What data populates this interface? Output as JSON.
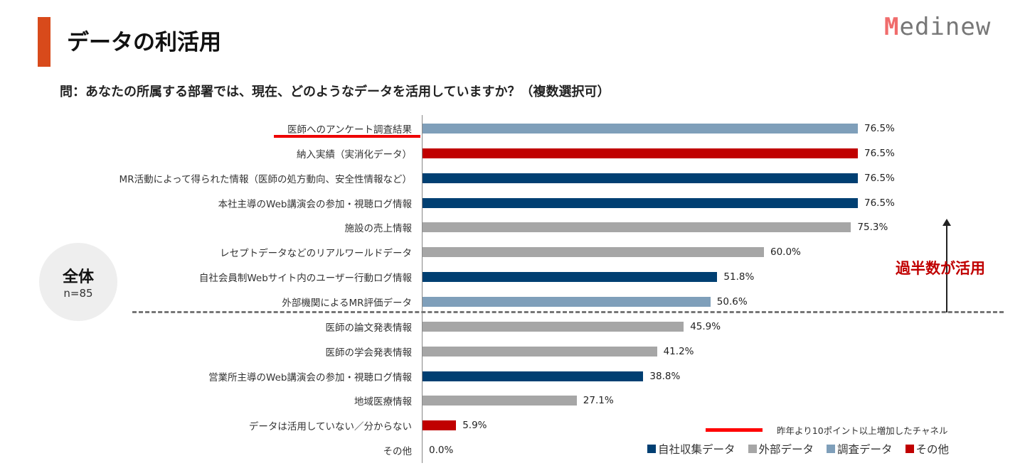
{
  "header": {
    "title": "データの利活用",
    "logo": "Medinew"
  },
  "question": "問：あなたの所属する部署では、現在、どのようなデータを活用していますか？（複数選択可）",
  "badge": {
    "label": "全体",
    "n": "n=85"
  },
  "annotation": "過半数が活用",
  "colors": {
    "自社収集データ": "#003f72",
    "外部データ": "#a6a6a6",
    "調査データ": "#7f9fba",
    "その他": "#c00000",
    "highlight": "#ff0000"
  },
  "chart_data": {
    "type": "bar",
    "orientation": "horizontal",
    "categories": [
      "医師へのアンケート調査結果",
      "納入実績（実消化データ）",
      "MR活動によって得られた情報（医師の処方動向、安全性情報など）",
      "本社主導のWeb講演会の参加・視聴ログ情報",
      "施設の売上情報",
      "レセプトデータなどのリアルワールドデータ",
      "自社会員制Webサイト内のユーザー行動ログ情報",
      "外部機関によるMR評価データ",
      "医師の論文発表情報",
      "医師の学会発表情報",
      "営業所主導のWeb講演会の参加・視聴ログ情報",
      "地域医療情報",
      "データは活用していない／分からない",
      "その他"
    ],
    "values": [
      76.5,
      76.5,
      76.5,
      76.5,
      75.3,
      60.0,
      51.8,
      50.6,
      45.9,
      41.2,
      38.8,
      27.1,
      5.9,
      0.0
    ],
    "labels": [
      "76.5%",
      "76.5%",
      "76.5%",
      "76.5%",
      "75.3%",
      "60.0%",
      "51.8%",
      "50.6%",
      "45.9%",
      "41.2%",
      "38.8%",
      "27.1%",
      "5.9%",
      "0.0%"
    ],
    "groups": [
      "調査データ",
      "その他",
      "自社収集データ",
      "自社収集データ",
      "外部データ",
      "外部データ",
      "自社収集データ",
      "調査データ",
      "外部データ",
      "外部データ",
      "自社収集データ",
      "外部データ",
      "その他",
      "その他"
    ],
    "highlighted": [
      "医師へのアンケート調査結果"
    ],
    "threshold_after_index": 7,
    "legend": [
      "自社収集データ",
      "外部データ",
      "調査データ",
      "その他"
    ],
    "highlight_legend": "昨年より10ポイント以上増加したチャネル",
    "xlim": [
      0,
      100
    ],
    "grid": false,
    "legend_position": "bottom-right"
  }
}
